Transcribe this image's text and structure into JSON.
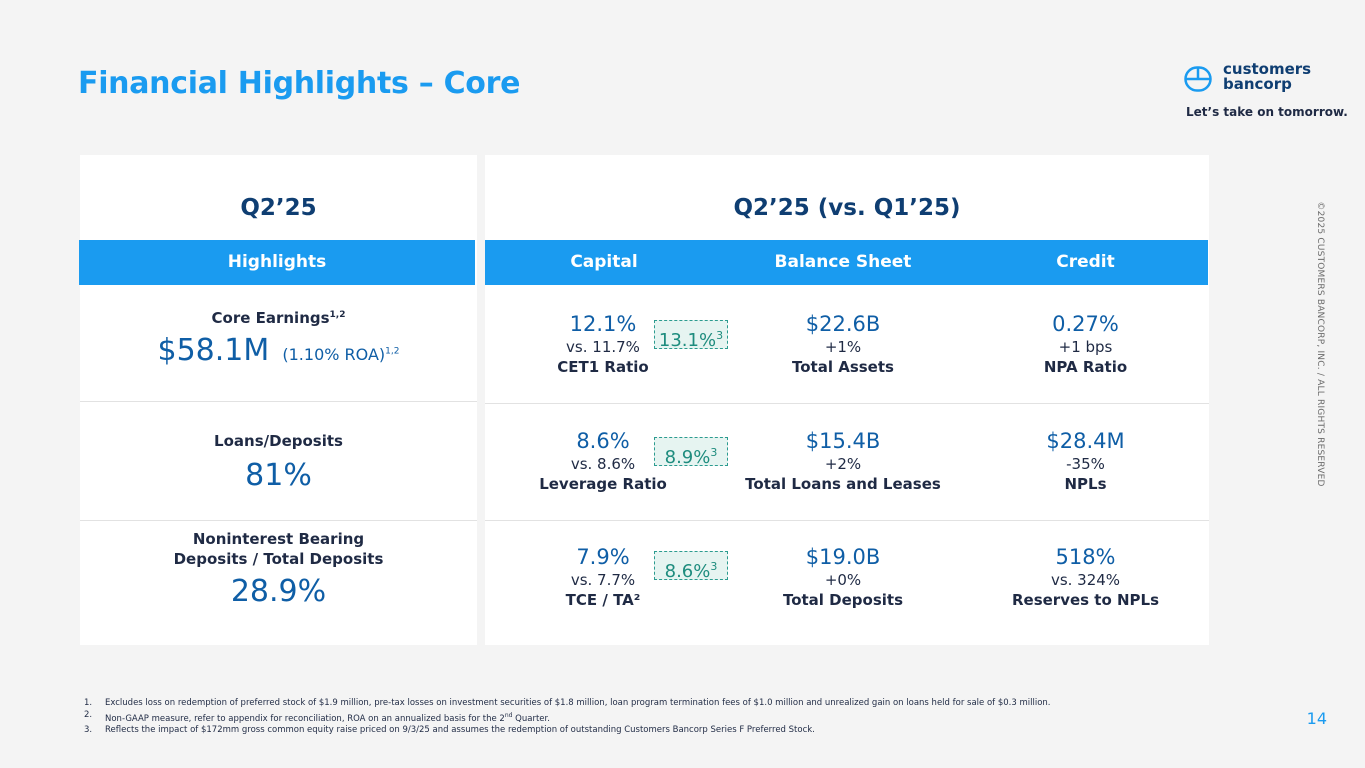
{
  "header": {
    "title": "Financial Highlights – Core",
    "logo_line1": "customers",
    "logo_line2": "bancorp",
    "tagline": "Let’s take on tomorrow."
  },
  "left_panel": {
    "heading": "Q2’25",
    "bar_label": "Highlights",
    "rows": [
      {
        "label": "Core Earnings",
        "label_sup": "1,2",
        "value": "$58.1M",
        "extra": "(1.10% ROA)",
        "extra_sup": "1,2"
      },
      {
        "label": "Loans/Deposits",
        "value": "81%"
      },
      {
        "label_line1": "Noninterest Bearing",
        "label_line2": "Deposits / Total Deposits",
        "value": "28.9%"
      }
    ]
  },
  "right_panel": {
    "heading": "Q2’25 (vs. Q1’25)",
    "columns": [
      "Capital",
      "Balance Sheet",
      "Credit"
    ],
    "capital": [
      {
        "value": "12.1%",
        "compare": "vs. 11.7%",
        "label": "CET1 Ratio",
        "pro_forma": "13.1%",
        "pro_sup": "3"
      },
      {
        "value": "8.6%",
        "compare": "vs. 8.6%",
        "label": "Leverage Ratio",
        "pro_forma": "8.9%",
        "pro_sup": "3"
      },
      {
        "value": "7.9%",
        "compare": "vs. 7.7%",
        "label": "TCE / TA²",
        "pro_forma": "8.6%",
        "pro_sup": "3"
      }
    ],
    "balance_sheet": [
      {
        "value": "$22.6B",
        "compare": "+1%",
        "label": "Total Assets"
      },
      {
        "value": "$15.4B",
        "compare": "+2%",
        "label": "Total Loans and Leases"
      },
      {
        "value": "$19.0B",
        "compare": "+0%",
        "label": "Total Deposits"
      }
    ],
    "credit": [
      {
        "value": "0.27%",
        "compare": "+1 bps",
        "label": "NPA Ratio"
      },
      {
        "value": "$28.4M",
        "compare": "-35%",
        "label": "NPLs"
      },
      {
        "value": "518%",
        "compare": "vs. 324%",
        "label": "Reserves to NPLs"
      }
    ]
  },
  "footnotes": [
    {
      "num": "1.",
      "text": "Excludes loss on redemption of preferred stock of $1.9 million, pre-tax losses on investment securities of $1.8 million, loan program termination fees of $1.0 million and unrealized gain on loans held for sale of $0.3 million."
    },
    {
      "num": "2.",
      "text_before": "Non-GAAP measure, refer to appendix for reconciliation, ROA on an annualized basis for the 2",
      "text_sup": "nd",
      "text_after": " Quarter."
    },
    {
      "num": "3.",
      "text": "Reflects the impact of $172mm gross common equity raise priced on 9/3/25 and assumes the redemption of outstanding Customers Bancorp Series F Preferred Stock."
    }
  ],
  "copyright": "©2025 CUSTOMERS BANCORP, INC. / ALL RIGHTS RESERVED",
  "page_number": "14",
  "colors": {
    "accent": "#1a9bf0",
    "navy": "#0f3e72",
    "value_blue": "#0f5ea6",
    "pro_forma_teal": "#1e8c7e"
  }
}
